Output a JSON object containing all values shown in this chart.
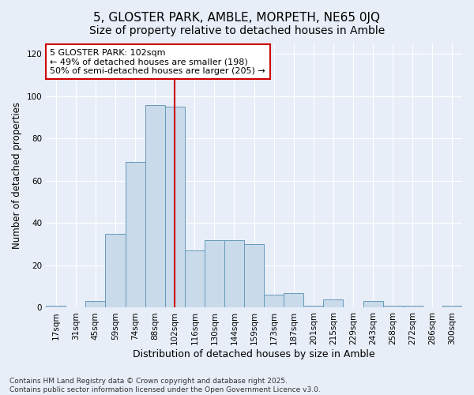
{
  "title": "5, GLOSTER PARK, AMBLE, MORPETH, NE65 0JQ",
  "subtitle": "Size of property relative to detached houses in Amble",
  "xlabel": "Distribution of detached houses by size in Amble",
  "ylabel": "Number of detached properties",
  "bar_color": "#c9daea",
  "bar_edge_color": "#6699bb",
  "background_color": "#e8eef8",
  "categories": [
    "17sqm",
    "31sqm",
    "45sqm",
    "59sqm",
    "74sqm",
    "88sqm",
    "102sqm",
    "116sqm",
    "130sqm",
    "144sqm",
    "159sqm",
    "173sqm",
    "187sqm",
    "201sqm",
    "215sqm",
    "229sqm",
    "243sqm",
    "258sqm",
    "272sqm",
    "286sqm",
    "300sqm"
  ],
  "values": [
    1,
    0,
    3,
    35,
    69,
    96,
    95,
    27,
    32,
    32,
    30,
    6,
    7,
    1,
    4,
    0,
    3,
    1,
    1,
    0,
    1
  ],
  "property_label": "5 GLOSTER PARK: 102sqm",
  "annotation_line1": "← 49% of detached houses are smaller (198)",
  "annotation_line2": "50% of semi-detached houses are larger (205) →",
  "vline_index": 6,
  "vline_color": "#cc0000",
  "annotation_box_color": "#ffffff",
  "annotation_box_edge": "#cc0000",
  "ylim": [
    0,
    125
  ],
  "yticks": [
    0,
    20,
    40,
    60,
    80,
    100,
    120
  ],
  "title_fontsize": 11,
  "subtitle_fontsize": 10,
  "xlabel_fontsize": 9,
  "ylabel_fontsize": 8.5,
  "tick_fontsize": 7.5,
  "annotation_fontsize": 8,
  "footnote_fontsize": 6.5,
  "footnote": "Contains HM Land Registry data © Crown copyright and database right 2025.\nContains public sector information licensed under the Open Government Licence v3.0."
}
